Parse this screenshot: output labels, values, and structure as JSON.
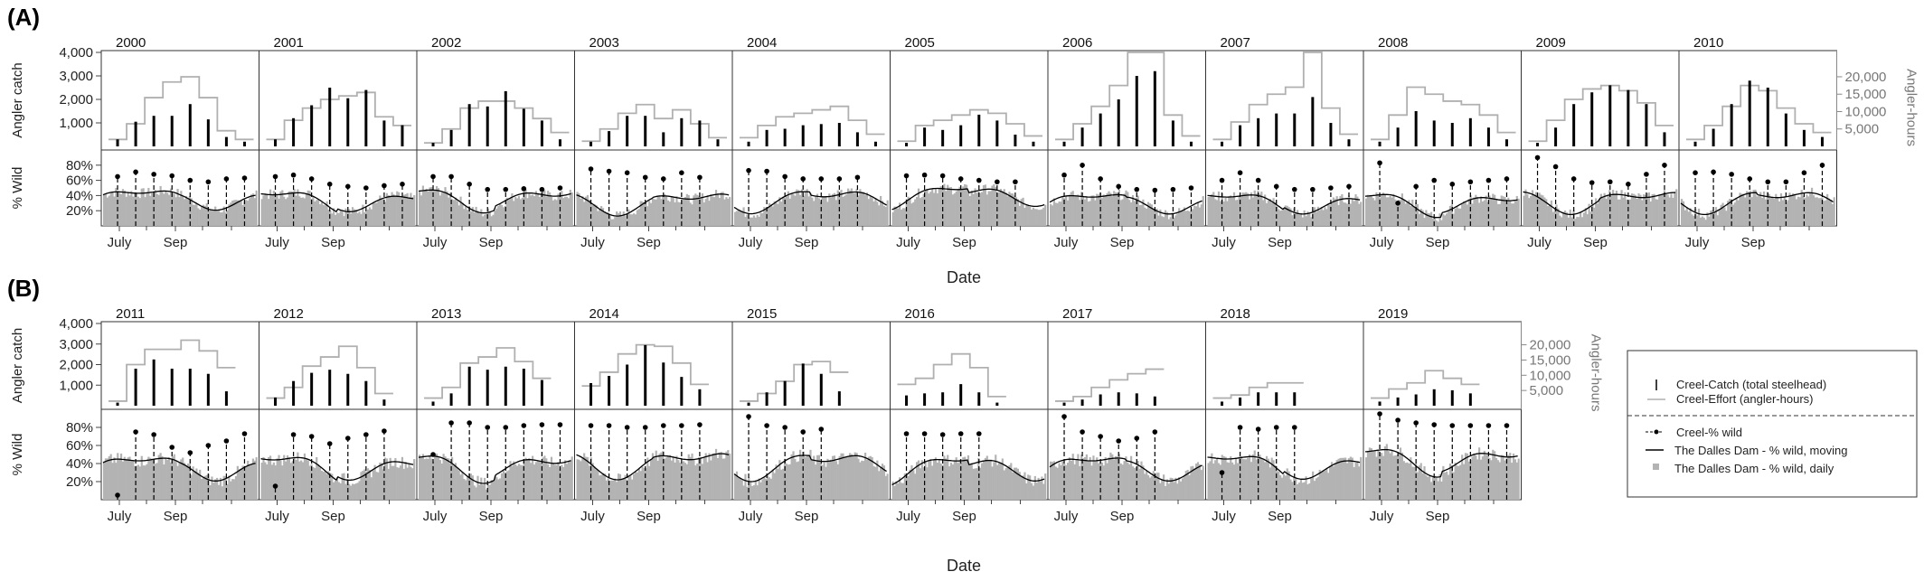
{
  "figure": {
    "panel_labels": [
      "(A)",
      "(B)"
    ],
    "left_axis_label_top": "Angler catch",
    "left_axis_label_bottom": "% Wild",
    "right_axis_label": "Angler-hours",
    "x_axis_label": "Date",
    "x_ticks": [
      "July",
      "Sep"
    ],
    "catch_ticks": [
      "1,000",
      "2,000",
      "3,000",
      "4,000"
    ],
    "wild_ticks": [
      "20%",
      "40%",
      "60%",
      "80%"
    ],
    "effort_ticks": [
      "5,000",
      "10,000",
      "15,000",
      "20,000"
    ]
  },
  "legend": {
    "items": [
      {
        "label": "Creel-Catch (total steelhead)",
        "symbol": "vertical-bar",
        "color": "#000000"
      },
      {
        "label": "Creel-Effort (angler-hours)",
        "symbol": "grey-line",
        "color": "#b0b0b0"
      },
      {
        "label": "Creel-% wild",
        "symbol": "dashed-stem-dot",
        "color": "#000000"
      },
      {
        "label": "The Dalles Dam - % wild, moving",
        "symbol": "black-line",
        "color": "#000000"
      },
      {
        "label": "The Dalles Dam - % wild, daily",
        "symbol": "grey-square",
        "color": "#b3b3b3"
      }
    ]
  },
  "chart_data": {
    "type": "bar",
    "description_units": {
      "catch": "fish",
      "effort": "angler-hours",
      "wild": "percent"
    },
    "axes": {
      "catch_ylim": [
        0,
        4000
      ],
      "effort_ylim": [
        0,
        27000
      ],
      "wild_ylim": [
        0,
        100
      ],
      "x_range": [
        "Jun 15",
        "Nov 30"
      ]
    },
    "colors": {
      "catch": "#000000",
      "effort": "#b0b0b0",
      "daily_wild": "#b3b3b3",
      "moving_wild": "#000000"
    },
    "panels": [
      {
        "panel": "(A)",
        "years": [
          {
            "year": "2000",
            "catch": [
              300,
              1050,
              1300,
              1300,
              1800,
              1150,
              400,
              200
            ],
            "effort": [
              2000,
              6500,
              14000,
              18500,
              20000,
              14000,
              4500,
              2000
            ],
            "wild_creel": [
              65,
              71,
              68,
              66,
              60,
              58,
              62,
              63
            ],
            "moving_base": 35
          },
          {
            "year": "2001",
            "catch": [
              300,
              1200,
              1750,
              2500,
              2050,
              2400,
              1100,
              900
            ],
            "effort": [
              2000,
              7500,
              11000,
              13500,
              14500,
              15500,
              8500,
              6000
            ],
            "wild_creel": [
              65,
              67,
              62,
              55,
              52,
              50,
              53,
              55
            ],
            "moving_base": 33
          },
          {
            "year": "2002",
            "catch": [
              150,
              700,
              1800,
              1700,
              2350,
              1600,
              1100,
              300
            ],
            "effort": [
              1000,
              5000,
              11000,
              13000,
              13000,
              11000,
              8000,
              4000
            ],
            "wild_creel": [
              65,
              65,
              55,
              48,
              48,
              49,
              48,
              50
            ],
            "moving_base": 37
          },
          {
            "year": "2003",
            "catch": [
              200,
              650,
              1300,
              1300,
              600,
              1200,
              1100,
              300
            ],
            "effort": [
              1500,
              5000,
              9500,
              12000,
              8000,
              10500,
              6500,
              2500
            ],
            "wild_creel": [
              75,
              72,
              70,
              64,
              62,
              70,
              64,
              0
            ],
            "moving_base": 33
          },
          {
            "year": "2004",
            "catch": [
              200,
              700,
              750,
              900,
              950,
              1000,
              600,
              200
            ],
            "effort": [
              2500,
              6000,
              8500,
              9500,
              10500,
              11500,
              7500,
              3500
            ],
            "wild_creel": [
              73,
              72,
              65,
              62,
              62,
              62,
              64,
              0
            ],
            "moving_base": 36
          },
          {
            "year": "2005",
            "catch": [
              150,
              800,
              700,
              900,
              1350,
              1100,
              500,
              200
            ],
            "effort": [
              1500,
              6000,
              7500,
              9000,
              10500,
              9500,
              6500,
              3000
            ],
            "wild_creel": [
              66,
              67,
              66,
              62,
              60,
              58,
              58,
              0
            ],
            "moving_base": 40
          },
          {
            "year": "2006",
            "catch": [
              200,
              800,
              1400,
              2000,
              3000,
              3200,
              1100,
              200
            ],
            "effort": [
              2000,
              6500,
              11500,
              17500,
              27000,
              27000,
              9000,
              3000
            ],
            "wild_creel": [
              67,
              80,
              62,
              52,
              48,
              47,
              48,
              50
            ],
            "moving_base": 30
          },
          {
            "year": "2007",
            "catch": [
              200,
              900,
              1200,
              1400,
              1400,
              2100,
              1000,
              300
            ],
            "effort": [
              2000,
              7000,
              12000,
              15000,
              17000,
              27000,
              11000,
              3500
            ],
            "wild_creel": [
              60,
              70,
              60,
              52,
              48,
              48,
              50,
              52
            ],
            "moving_base": 30
          },
          {
            "year": "2008",
            "catch": [
              200,
              800,
              1500,
              1100,
              1000,
              1200,
              800,
              300
            ],
            "effort": [
              2000,
              9000,
              17000,
              15000,
              13000,
              12000,
              9000,
              4000
            ],
            "wild_creel": [
              83,
              30,
              52,
              60,
              55,
              58,
              60,
              62
            ],
            "moving_base": 31
          },
          {
            "year": "2009",
            "catch": [
              150,
              800,
              1800,
              2300,
              2600,
              2400,
              1800,
              600
            ],
            "effort": [
              1500,
              7500,
              13500,
              16500,
              17500,
              16000,
              12500,
              6000
            ],
            "wild_creel": [
              90,
              78,
              62,
              57,
              58,
              55,
              68,
              80
            ],
            "moving_base": 35
          },
          {
            "year": "2010",
            "catch": [
              200,
              750,
              1800,
              2800,
              2500,
              1400,
              700,
              400
            ],
            "effort": [
              2000,
              6000,
              11500,
              17500,
              16000,
              11000,
              6500,
              4000
            ],
            "wild_creel": [
              70,
              71,
              68,
              62,
              58,
              58,
              70,
              80
            ],
            "moving_base": 35
          }
        ]
      },
      {
        "panel": "(B)",
        "years": [
          {
            "year": "2011",
            "catch": [
              150,
              1800,
              2250,
              1800,
              1800,
              1550,
              700
            ],
            "effort": [
              1500,
              13500,
              18500,
              18500,
              21500,
              18000,
              12500
            ],
            "wild_creel": [
              5,
              75,
              72,
              58,
              52,
              60,
              65,
              73
            ],
            "moving_base": 35
          },
          {
            "year": "2012",
            "catch": [
              400,
              1200,
              1600,
              1750,
              1550,
              1200,
              300
            ],
            "effort": [
              2500,
              6000,
              13000,
              16000,
              19500,
              12500,
              4000
            ],
            "wild_creel": [
              15,
              72,
              70,
              62,
              68,
              72,
              76,
              0
            ],
            "moving_base": 36
          },
          {
            "year": "2013",
            "catch": [
              200,
              600,
              1900,
              1750,
              1900,
              1800,
              1250
            ],
            "effort": [
              2500,
              6000,
              14000,
              16000,
              19000,
              14500,
              9000
            ],
            "wild_creel": [
              50,
              85,
              85,
              80,
              80,
              82,
              83,
              83
            ],
            "moving_base": 38
          },
          {
            "year": "2014",
            "catch": [
              1100,
              1450,
              2000,
              2950,
              2100,
              1400,
              800
            ],
            "effort": [
              6500,
              11000,
              17000,
              20000,
              19500,
              14000,
              7000
            ],
            "wild_creel": [
              82,
              82,
              80,
              80,
              82,
              82,
              83,
              0
            ],
            "moving_base": 42
          },
          {
            "year": "2015",
            "catch": [
              150,
              650,
              1200,
              2050,
              1550,
              700
            ],
            "effort": [
              1500,
              4000,
              8000,
              13500,
              14500,
              11000
            ],
            "wild_creel": [
              92,
              82,
              80,
              75,
              78,
              0,
              0,
              0
            ],
            "moving_base": 40
          },
          {
            "year": "2016",
            "catch": [
              500,
              600,
              650,
              1050,
              650,
              150
            ],
            "effort": [
              7000,
              9000,
              13500,
              17000,
              12500,
              3000
            ],
            "wild_creel": [
              73,
              73,
              72,
              73,
              73,
              0,
              0,
              0
            ],
            "moving_base": 35
          },
          {
            "year": "2017",
            "catch": [
              150,
              300,
              550,
              650,
              600,
              450
            ],
            "effort": [
              1500,
              3000,
              6000,
              8500,
              10500,
              12000
            ],
            "wild_creel": [
              92,
              75,
              70,
              65,
              68,
              75,
              0,
              0
            ],
            "moving_base": 35
          },
          {
            "year": "2018",
            "catch": [
              200,
              400,
              650,
              650,
              650
            ],
            "effort": [
              2500,
              3500,
              6000,
              7500,
              7500
            ],
            "wild_creel": [
              30,
              80,
              78,
              80,
              80,
              0,
              0,
              0
            ],
            "moving_base": 37
          },
          {
            "year": "2019",
            "catch": [
              200,
              400,
              550,
              800,
              750,
              600
            ],
            "effort": [
              2500,
              5500,
              7500,
              11500,
              9000,
              7000
            ],
            "wild_creel": [
              95,
              88,
              85,
              83,
              82,
              82,
              82,
              82
            ],
            "moving_base": 45
          }
        ]
      }
    ]
  }
}
